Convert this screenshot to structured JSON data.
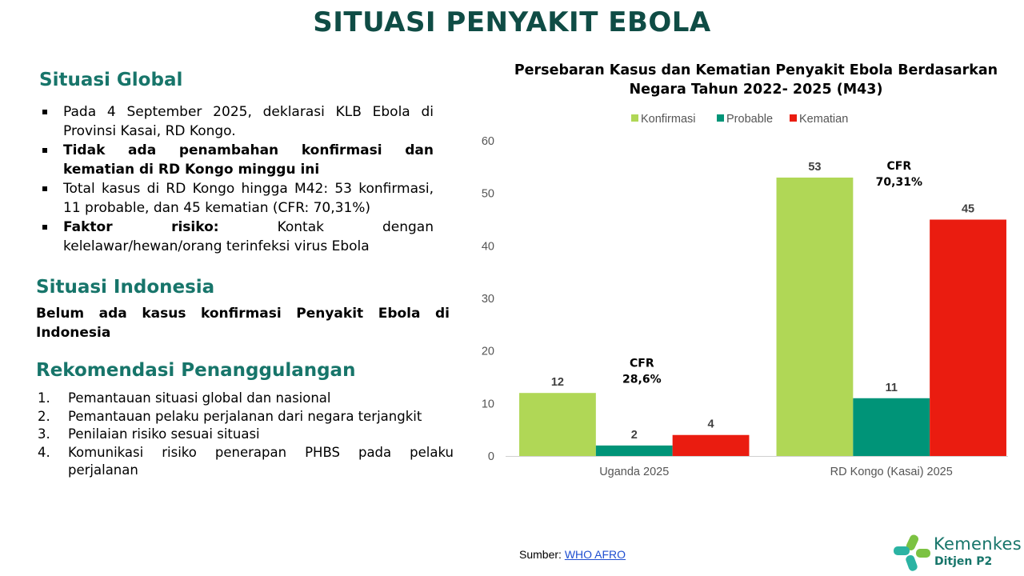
{
  "title": "SITUASI PENYAKIT EBOLA",
  "global": {
    "heading": "Situasi Global",
    "bullets": [
      {
        "bold": "",
        "text": "Pada 4 September 2025, deklarasi KLB Ebola di Provinsi Kasai, RD Kongo."
      },
      {
        "bold": "Tidak ada penambahan konfirmasi dan kematian di RD Kongo minggu ini",
        "text": ""
      },
      {
        "bold": "",
        "text": "Total kasus di RD Kongo hingga M42: 53 konfirmasi, 11  probable, dan 45 kematian (CFR: 70,31%)"
      },
      {
        "bold": "Faktor risiko:",
        "text": " Kontak dengan kelelawar/hewan/orang terinfeksi virus Ebola"
      }
    ]
  },
  "indonesia": {
    "heading": "Situasi Indonesia",
    "text": "Belum ada kasus konfirmasi Penyakit Ebola di Indonesia"
  },
  "recommendation": {
    "heading": "Rekomendasi Penanggulangan",
    "items": [
      {
        "num": "1.",
        "text": "Pemantauan situasi global dan nasional"
      },
      {
        "num": "2.",
        "text": "Pemantauan pelaku perjalanan dari negara terjangkit"
      },
      {
        "num": "3.",
        "text": "Penilaian risiko sesuai situasi"
      },
      {
        "num": "4.",
        "text": "Komunikasi risiko penerapan PHBS pada pelaku perjalanan"
      }
    ]
  },
  "chart_data": {
    "type": "bar",
    "title": "Persebaran Kasus dan Kematian Penyakit Ebola Berdasarkan Negara Tahun 2022- 2025 (M43)",
    "categories": [
      "Uganda 2025",
      "RD Kongo (Kasai) 2025"
    ],
    "series": [
      {
        "name": "Konfirmasi",
        "color": "#b0d756",
        "values": [
          12,
          53
        ]
      },
      {
        "name": "Probable",
        "color": "#009478",
        "values": [
          2,
          11
        ]
      },
      {
        "name": "Kematian",
        "color": "#ea1c10",
        "values": [
          4,
          45
        ]
      }
    ],
    "ylim": [
      0,
      60
    ],
    "yticks": [
      0,
      10,
      20,
      30,
      40,
      50,
      60
    ],
    "grid": false,
    "legend_position": "top",
    "annotations": [
      {
        "category": "Uganda 2025",
        "lines": [
          "CFR",
          "28,6%"
        ],
        "at_value": 17
      },
      {
        "category": "RD Kongo (Kasai) 2025",
        "lines": [
          "CFR",
          "70,31%"
        ],
        "at_value": 54.5
      }
    ]
  },
  "source": {
    "label": "Sumber: ",
    "link_text": "WHO AFRO"
  },
  "logo": {
    "name": "Kemenkes",
    "sub": "Ditjen P2"
  }
}
